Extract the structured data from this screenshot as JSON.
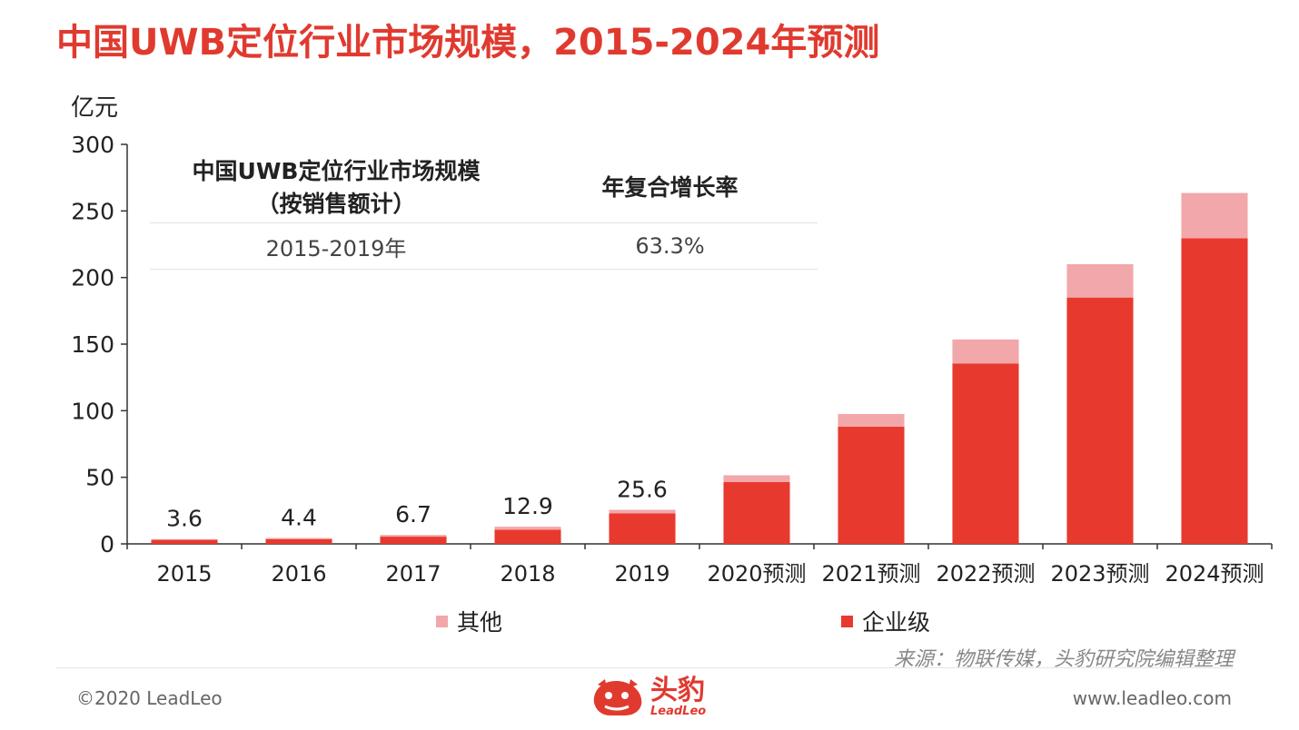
{
  "title": "中国UWB定位行业市场规模，2015-2024年预测",
  "unit_label": "亿元",
  "table": {
    "col1_header_line1": "中国UWB定位行业市场规模",
    "col1_header_line2": "（按销售额计）",
    "col2_header": "年复合增长率",
    "row_period": "2015-2019年",
    "row_rate": "63.3%"
  },
  "legend": {
    "other": "其他",
    "enterprise": "企业级"
  },
  "source": "来源：物联传媒，头豹研究院编辑整理",
  "footer": {
    "copyright": "©2020 LeadLeo",
    "website": "www.leadleo.com",
    "logo_cn": "头豹",
    "logo_en": "LeadLeo"
  },
  "colors": {
    "accent": "#e03a2f",
    "enterprise": "#e8392e",
    "other": "#f2a7ab"
  },
  "chart_data": {
    "type": "bar",
    "stacked": true,
    "categories": [
      "2015",
      "2016",
      "2017",
      "2018",
      "2019",
      "2020预测",
      "2021预测",
      "2022预测",
      "2023预测",
      "2024预测"
    ],
    "series": [
      {
        "name": "企业级",
        "values": [
          3.0,
          3.6,
          5.4,
          10.6,
          23.0,
          46.5,
          88.0,
          135.5,
          185.0,
          229.5
        ]
      },
      {
        "name": "其他",
        "values": [
          0.6,
          0.8,
          1.3,
          2.3,
          2.6,
          5.0,
          9.5,
          18.0,
          25.0,
          34.0
        ]
      }
    ],
    "total_labels": [
      "3.6",
      "4.4",
      "6.7",
      "12.9",
      "25.6",
      "",
      "",
      "",
      "",
      ""
    ],
    "ylim": [
      0,
      300
    ],
    "yticks": [
      0,
      50,
      100,
      150,
      200,
      250,
      300
    ],
    "xlabel": "",
    "ylabel": "亿元",
    "grid": false,
    "legend_position": "bottom"
  }
}
